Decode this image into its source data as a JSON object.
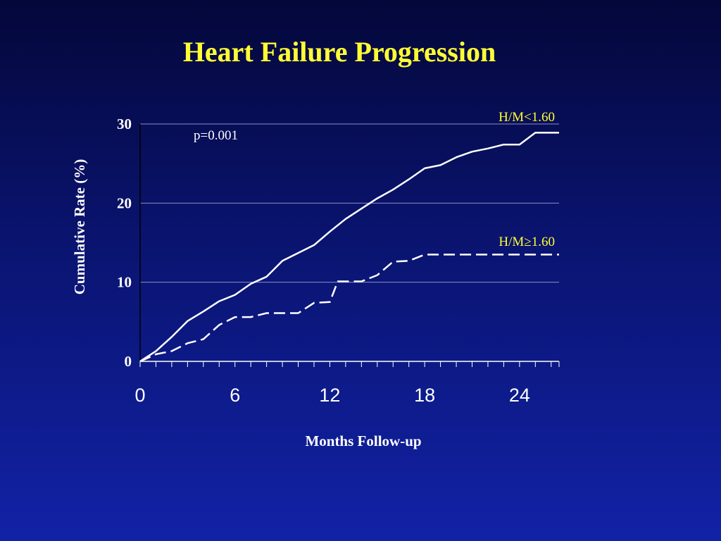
{
  "slide": {
    "title": "Heart Failure Progression"
  },
  "chart_data": {
    "type": "line",
    "xlabel": "Months Follow-up",
    "ylabel": "Cumulative Rate (%)",
    "xlim": [
      0,
      26.5
    ],
    "ylim": [
      0,
      30
    ],
    "xticks": [
      0,
      6,
      12,
      18,
      24
    ],
    "yticks": [
      0,
      10,
      20,
      30
    ],
    "grid": "horizontal",
    "annotation": "p=0.001",
    "series": [
      {
        "name": "H/M<1.60",
        "style": "solid",
        "color": "#ffffff",
        "x": [
          0,
          1,
          2,
          3,
          4,
          5,
          6,
          7,
          8,
          9,
          10,
          11,
          12,
          13,
          14,
          15,
          16,
          17,
          18,
          19,
          20,
          21,
          22,
          23,
          24,
          25,
          26,
          26.5
        ],
        "y": [
          0,
          1.3,
          3.1,
          5.1,
          6.3,
          7.6,
          8.4,
          9.8,
          10.7,
          12.7,
          13.7,
          14.7,
          16.4,
          18.0,
          19.3,
          20.6,
          21.7,
          23.0,
          24.4,
          24.8,
          25.8,
          26.5,
          26.9,
          27.4,
          27.4,
          28.9,
          28.9,
          28.9
        ]
      },
      {
        "name": "H/M≥1.60",
        "style": "dashed",
        "color": "#ffffff",
        "x": [
          0,
          1,
          2,
          3,
          4,
          5,
          6,
          7,
          8,
          9,
          10,
          11,
          12,
          12.5,
          13,
          14,
          15,
          16,
          17,
          18,
          19,
          20,
          21,
          22,
          23,
          24,
          25,
          26,
          26.5
        ],
        "y": [
          0,
          0.9,
          1.3,
          2.3,
          2.8,
          4.6,
          5.6,
          5.6,
          6.1,
          6.1,
          6.1,
          7.4,
          7.5,
          10.1,
          10.1,
          10.1,
          10.9,
          12.6,
          12.7,
          13.5,
          13.5,
          13.5,
          13.5,
          13.5,
          13.5,
          13.5,
          13.5,
          13.5,
          13.5
        ]
      }
    ]
  }
}
